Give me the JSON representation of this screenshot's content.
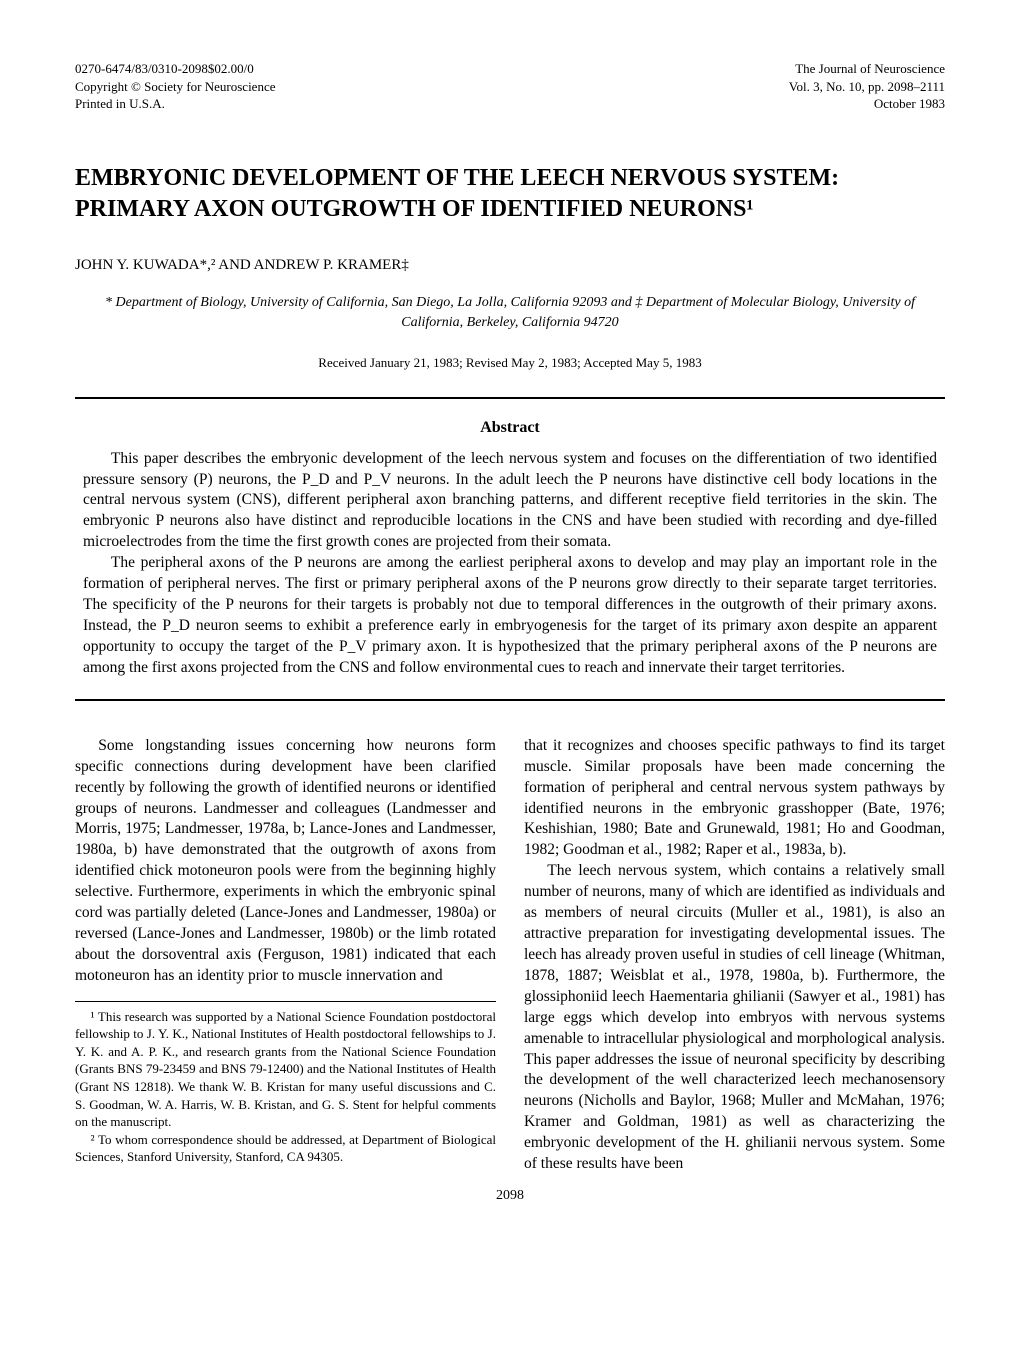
{
  "header": {
    "left_line1": "0270-6474/83/0310-2098$02.00/0",
    "left_line2": "Copyright © Society for Neuroscience",
    "left_line3": "Printed in U.S.A.",
    "right_line1": "The Journal of Neuroscience",
    "right_line2": "Vol. 3, No. 10, pp. 2098–2111",
    "right_line3": "October 1983"
  },
  "title_line1": "EMBRYONIC DEVELOPMENT OF THE LEECH NERVOUS SYSTEM:",
  "title_line2": "PRIMARY AXON OUTGROWTH OF IDENTIFIED NEURONS¹",
  "authors": "JOHN Y. KUWADA*,² AND ANDREW P. KRAMER‡",
  "affiliations": "* Department of Biology, University of California, San Diego, La Jolla, California 92093 and ‡ Department of Molecular Biology, University of California, Berkeley, California 94720",
  "dates": "Received January 21, 1983; Revised May 2, 1983; Accepted May 5, 1983",
  "abstract_title": "Abstract",
  "abstract_p1": "This paper describes the embryonic development of the leech nervous system and focuses on the differentiation of two identified pressure sensory (P) neurons, the P_D and P_V neurons. In the adult leech the P neurons have distinctive cell body locations in the central nervous system (CNS), different peripheral axon branching patterns, and different receptive field territories in the skin. The embryonic P neurons also have distinct and reproducible locations in the CNS and have been studied with recording and dye-filled microelectrodes from the time the first growth cones are projected from their somata.",
  "abstract_p2": "The peripheral axons of the P neurons are among the earliest peripheral axons to develop and may play an important role in the formation of peripheral nerves. The first or primary peripheral axons of the P neurons grow directly to their separate target territories. The specificity of the P neurons for their targets is probably not due to temporal differences in the outgrowth of their primary axons. Instead, the P_D neuron seems to exhibit a preference early in embryogenesis for the target of its primary axon despite an apparent opportunity to occupy the target of the P_V primary axon. It is hypothesized that the primary peripheral axons of the P neurons are among the first axons projected from the CNS and follow environmental cues to reach and innervate their target territories.",
  "body_col1_p1": "Some longstanding issues concerning how neurons form specific connections during development have been clarified recently by following the growth of identified neurons or identified groups of neurons. Landmesser and colleagues (Landmesser and Morris, 1975; Landmesser, 1978a, b; Lance-Jones and Landmesser, 1980a, b) have demonstrated that the outgrowth of axons from identified chick motoneuron pools were from the beginning highly selective. Furthermore, experiments in which the embryonic spinal cord was partially deleted (Lance-Jones and Landmesser, 1980a) or reversed (Lance-Jones and Landmesser, 1980b) or the limb rotated about the dorsoventral axis (Ferguson, 1981) indicated that each motoneuron has an identity prior to muscle innervation and",
  "body_col2_p1": "that it recognizes and chooses specific pathways to find its target muscle. Similar proposals have been made concerning the formation of peripheral and central nervous system pathways by identified neurons in the embryonic grasshopper (Bate, 1976; Keshishian, 1980; Bate and Grunewald, 1981; Ho and Goodman, 1982; Goodman et al., 1982; Raper et al., 1983a, b).",
  "body_col2_p2": "The leech nervous system, which contains a relatively small number of neurons, many of which are identified as individuals and as members of neural circuits (Muller et al., 1981), is also an attractive preparation for investigating developmental issues. The leech has already proven useful in studies of cell lineage (Whitman, 1878, 1887; Weisblat et al., 1978, 1980a, b). Furthermore, the glossiphoniid leech Haementaria ghilianii (Sawyer et al., 1981) has large eggs which develop into embryos with nervous systems amenable to intracellular physiological and morphological analysis. This paper addresses the issue of neuronal specificity by describing the development of the well characterized leech mechanosensory neurons (Nicholls and Baylor, 1968; Muller and McMahan, 1976; Kramer and Goldman, 1981) as well as characterizing the embryonic development of the H. ghilianii nervous system. Some of these results have been",
  "footnote1": "¹ This research was supported by a National Science Foundation postdoctoral fellowship to J. Y. K., National Institutes of Health postdoctoral fellowships to J. Y. K. and A. P. K., and research grants from the National Science Foundation (Grants BNS 79-23459 and BNS 79-12400) and the National Institutes of Health (Grant NS 12818). We thank W. B. Kristan for many useful discussions and C. S. Goodman, W. A. Harris, W. B. Kristan, and G. S. Stent for helpful comments on the manuscript.",
  "footnote2": "² To whom correspondence should be addressed, at Department of Biological Sciences, Stanford University, Stanford, CA 94305.",
  "page_number": "2098"
}
